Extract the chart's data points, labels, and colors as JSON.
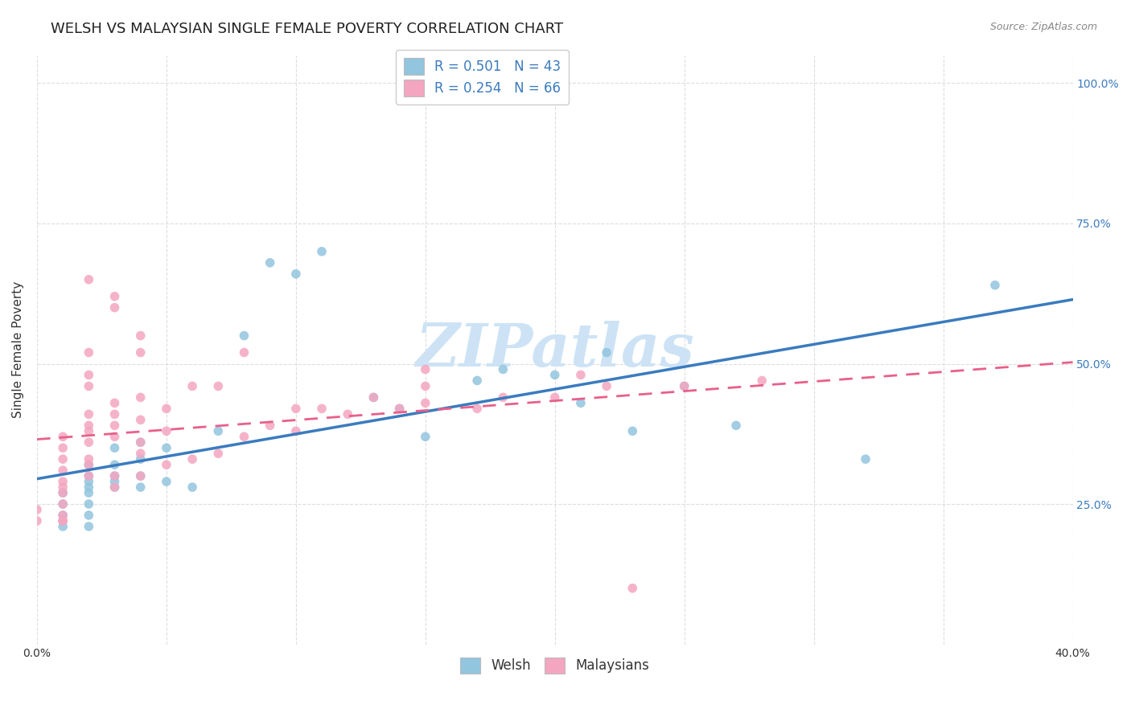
{
  "title": "WELSH VS MALAYSIAN SINGLE FEMALE POVERTY CORRELATION CHART",
  "source": "Source: ZipAtlas.com",
  "ylabel": "Single Female Poverty",
  "xlim": [
    0.0,
    40.0
  ],
  "ylim": [
    0.0,
    105.0
  ],
  "x_ticks": [
    0.0,
    5.0,
    10.0,
    15.0,
    20.0,
    25.0,
    30.0,
    35.0,
    40.0
  ],
  "x_tick_labels": [
    "0.0%",
    "",
    "",
    "",
    "",
    "",
    "",
    "",
    "40.0%"
  ],
  "y_ticks": [
    0.0,
    25.0,
    50.0,
    75.0,
    100.0
  ],
  "y_tick_labels": [
    "",
    "25.0%",
    "50.0%",
    "75.0%",
    "100.0%"
  ],
  "welsh_R": 0.501,
  "welsh_N": 43,
  "malaysian_R": 0.254,
  "malaysian_N": 66,
  "welsh_color": "#92c5de",
  "malaysian_color": "#f4a6c0",
  "welsh_line_color": "#3a7bbf",
  "malaysian_line_color": "#e8608a",
  "watermark": "ZIPatlas",
  "watermark_color": "#cde3f5",
  "background_color": "#ffffff",
  "grid_color": "#dddddd",
  "welsh_x": [
    1,
    1,
    1,
    1,
    1,
    2,
    2,
    2,
    2,
    2,
    2,
    2,
    2,
    3,
    3,
    3,
    3,
    3,
    4,
    4,
    4,
    4,
    5,
    5,
    6,
    7,
    8,
    9,
    10,
    11,
    13,
    14,
    15,
    17,
    18,
    20,
    21,
    22,
    23,
    25,
    27,
    32,
    37
  ],
  "welsh_y": [
    21,
    22,
    23,
    25,
    27,
    21,
    23,
    25,
    27,
    28,
    29,
    30,
    32,
    28,
    29,
    30,
    32,
    35,
    28,
    30,
    33,
    36,
    29,
    35,
    28,
    38,
    55,
    68,
    66,
    70,
    44,
    42,
    37,
    47,
    49,
    48,
    43,
    52,
    38,
    46,
    39,
    33,
    64
  ],
  "malaysian_x": [
    0,
    0,
    1,
    1,
    1,
    1,
    1,
    1,
    1,
    1,
    1,
    1,
    1,
    2,
    2,
    2,
    2,
    2,
    2,
    2,
    2,
    2,
    2,
    2,
    3,
    3,
    3,
    3,
    3,
    3,
    3,
    3,
    4,
    4,
    4,
    4,
    4,
    4,
    4,
    5,
    5,
    5,
    6,
    6,
    7,
    7,
    8,
    8,
    9,
    10,
    10,
    11,
    12,
    13,
    14,
    15,
    15,
    15,
    17,
    18,
    20,
    21,
    22,
    23,
    25,
    28
  ],
  "malaysian_y": [
    22,
    24,
    22,
    23,
    25,
    27,
    28,
    29,
    31,
    33,
    35,
    37,
    22,
    30,
    32,
    33,
    36,
    38,
    39,
    41,
    46,
    48,
    52,
    65,
    28,
    30,
    37,
    39,
    41,
    43,
    60,
    62,
    30,
    34,
    36,
    40,
    44,
    52,
    55,
    32,
    38,
    42,
    33,
    46,
    34,
    46,
    37,
    52,
    39,
    38,
    42,
    42,
    41,
    44,
    42,
    43,
    46,
    49,
    42,
    44,
    44,
    48,
    46,
    10,
    46,
    47
  ],
  "title_fontsize": 13,
  "axis_fontsize": 11,
  "tick_fontsize": 10,
  "legend_fontsize": 12
}
